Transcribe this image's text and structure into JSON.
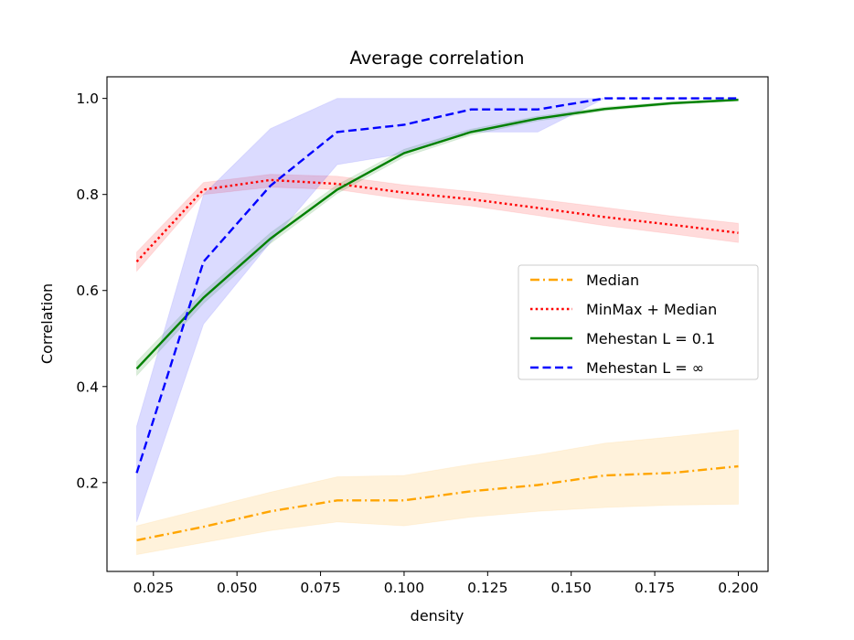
{
  "chart_data": {
    "type": "line",
    "title": "Average correlation",
    "xlabel": "density",
    "ylabel": "Correlation",
    "xlim": [
      0.0111,
      0.2089
    ],
    "ylim": [
      0.015,
      1.045
    ],
    "xticks": [
      0.025,
      0.05,
      0.075,
      0.1,
      0.125,
      0.15,
      0.175,
      0.2
    ],
    "xtick_labels": [
      "0.025",
      "0.050",
      "0.075",
      "0.100",
      "0.125",
      "0.150",
      "0.175",
      "0.200"
    ],
    "yticks": [
      0.2,
      0.4,
      0.6,
      0.8,
      1.0
    ],
    "ytick_labels": [
      "0.2",
      "0.4",
      "0.6",
      "0.8",
      "1.0"
    ],
    "grid": false,
    "legend_position": "center-right",
    "series": [
      {
        "name": "Median",
        "color": "#ffa500",
        "dash": "dashdot",
        "x": [
          0.02,
          0.04,
          0.06,
          0.08,
          0.1,
          0.12,
          0.14,
          0.16,
          0.18,
          0.2
        ],
        "y": [
          0.08,
          0.108,
          0.14,
          0.163,
          0.163,
          0.182,
          0.195,
          0.215,
          0.22,
          0.234
        ],
        "lower": [
          0.05,
          0.075,
          0.1,
          0.118,
          0.11,
          0.128,
          0.14,
          0.148,
          0.153,
          0.155
        ],
        "upper": [
          0.11,
          0.145,
          0.18,
          0.212,
          0.215,
          0.238,
          0.258,
          0.282,
          0.295,
          0.31
        ]
      },
      {
        "name": "MinMax +  Median",
        "color": "#ff0000",
        "dash": "dotted",
        "x": [
          0.02,
          0.04,
          0.06,
          0.08,
          0.1,
          0.12,
          0.14,
          0.16,
          0.18,
          0.2
        ],
        "y": [
          0.66,
          0.81,
          0.83,
          0.822,
          0.804,
          0.79,
          0.772,
          0.753,
          0.737,
          0.72
        ],
        "lower": [
          0.64,
          0.8,
          0.815,
          0.81,
          0.79,
          0.776,
          0.756,
          0.735,
          0.718,
          0.7
        ],
        "upper": [
          0.68,
          0.825,
          0.842,
          0.838,
          0.82,
          0.806,
          0.79,
          0.773,
          0.755,
          0.74
        ]
      },
      {
        "name": "Mehestan  L = 0.1",
        "color": "#008000",
        "dash": "solid",
        "x": [
          0.02,
          0.04,
          0.06,
          0.08,
          0.1,
          0.12,
          0.14,
          0.16,
          0.18,
          0.2
        ],
        "y": [
          0.437,
          0.585,
          0.708,
          0.81,
          0.886,
          0.93,
          0.958,
          0.978,
          0.99,
          0.997
        ],
        "lower": [
          0.423,
          0.573,
          0.698,
          0.802,
          0.878,
          0.924,
          0.953,
          0.974,
          0.987,
          0.995
        ],
        "upper": [
          0.452,
          0.597,
          0.72,
          0.82,
          0.894,
          0.936,
          0.963,
          0.982,
          0.993,
          0.999
        ]
      },
      {
        "name": "Mehestan  L = ∞",
        "color": "#0000ff",
        "dash": "dashed",
        "x": [
          0.02,
          0.04,
          0.06,
          0.08,
          0.1,
          0.12,
          0.14,
          0.16,
          0.18,
          0.2
        ],
        "y": [
          0.22,
          0.66,
          0.818,
          0.93,
          0.945,
          0.977,
          0.977,
          1.0,
          1.0,
          1.0
        ],
        "lower": [
          0.118,
          0.53,
          0.7,
          0.862,
          0.885,
          0.93,
          0.93,
          1.0,
          1.0,
          1.0
        ],
        "upper": [
          0.318,
          0.8,
          0.937,
          1.0,
          1.0,
          1.0,
          1.0,
          1.0,
          1.0,
          1.0
        ]
      }
    ]
  }
}
